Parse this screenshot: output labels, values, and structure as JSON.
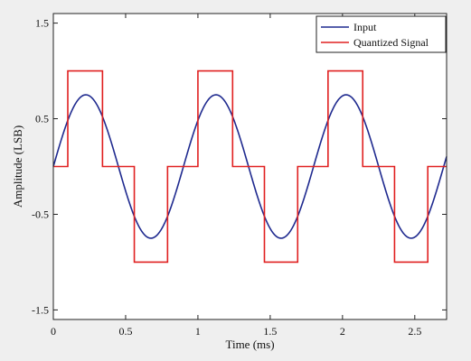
{
  "chart_data": {
    "type": "line",
    "xlabel": "Time (ms)",
    "ylabel": "Amplitude (LSB)",
    "xlim": [
      0,
      2.72
    ],
    "ylim": [
      -1.6,
      1.6
    ],
    "xticks": [
      0,
      0.5,
      1,
      1.5,
      2,
      2.5
    ],
    "xtick_labels": [
      "0",
      "0.5",
      "1",
      "1.5",
      "2",
      "2.5"
    ],
    "yticks": [
      1.5,
      0.5,
      -0.5,
      -1.5
    ],
    "ytick_labels": [
      "1.5",
      "0.5",
      "-0.5",
      "-1.5"
    ],
    "grid": false,
    "legend_position": "top-right",
    "series": [
      {
        "name": "Input",
        "color": "#1f2a8f",
        "kind": "sine",
        "amplitude": 0.75,
        "period": 0.9,
        "phase": 0
      },
      {
        "name": "Quantized Signal",
        "color": "#e02020",
        "kind": "step",
        "points": [
          [
            0,
            0
          ],
          [
            0.1,
            0
          ],
          [
            0.1,
            1
          ],
          [
            0.34,
            1
          ],
          [
            0.34,
            0
          ],
          [
            0.56,
            0
          ],
          [
            0.56,
            -1
          ],
          [
            0.79,
            -1
          ],
          [
            0.79,
            0
          ],
          [
            1.0,
            0
          ],
          [
            1.0,
            1
          ],
          [
            1.24,
            1
          ],
          [
            1.24,
            0
          ],
          [
            1.46,
            0
          ],
          [
            1.46,
            -1
          ],
          [
            1.69,
            -1
          ],
          [
            1.69,
            0
          ],
          [
            1.9,
            0
          ],
          [
            1.9,
            1
          ],
          [
            2.14,
            1
          ],
          [
            2.14,
            0
          ],
          [
            2.36,
            0
          ],
          [
            2.36,
            -1
          ],
          [
            2.59,
            -1
          ],
          [
            2.59,
            0
          ],
          [
            2.72,
            0
          ]
        ]
      }
    ]
  }
}
